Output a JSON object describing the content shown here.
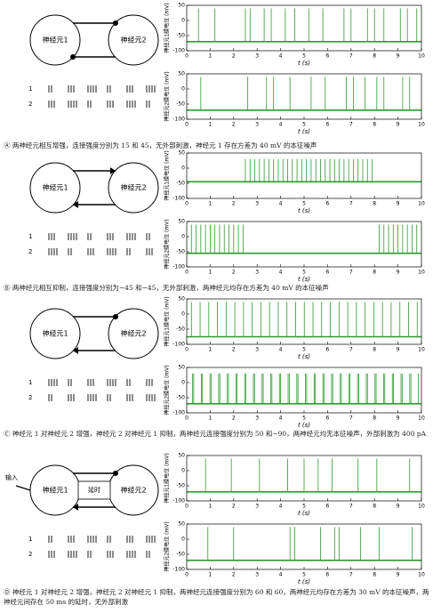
{
  "panels": [
    {
      "node1": "神经元1",
      "node2": "神经元2",
      "row1": "1",
      "row2": "2",
      "caption": "Ⓐ 两神经元相互增强，连接强度分别为 15 和 45，无外部刺激，神经元 1 存在方差为 40 mV 的本征噪声"
    },
    {
      "node1": "神经元1",
      "node2": "神经元2",
      "row1": "1",
      "row2": "2",
      "caption": "Ⓑ 两神经元相互抑制，连接强度分别为−45 和−45，无外部刺激，两神经元均存在方差为 40 mV 的本征噪声"
    },
    {
      "node1": "神经元1",
      "node2": "神经元2",
      "row1": "1",
      "row2": "2",
      "caption": "Ⓒ 神经元 1 对神经元 2 增强，神经元 2 对神经元 1 抑制，两神经元连接强度分别为 50 和−90，两神经元均无本征噪声，外部刺激为 400 pA"
    },
    {
      "node1": "神经元1",
      "node2": "神经元2",
      "row1": "1",
      "row2": "2",
      "input": "输入",
      "delay": "延时",
      "caption": "Ⓓ 神经元 1 对神经元 2 增强，神经元 2 对神经元 1 抑制，两神经元连接强度分别为 60 和 60，两神经元均存在方差为 30 mV 的本征噪声，两神经元间存在 50 ms 的延时，无外部刺激"
    }
  ],
  "chart_data": [
    {
      "type": "spikes",
      "ylabel": "神经元1膜电位 (mV)",
      "xlabel": "t (s)",
      "color": "#2e9a2e",
      "xlim": [
        0,
        10
      ],
      "ylim": [
        -100,
        50
      ],
      "xticks": [
        0,
        1,
        2,
        3,
        4,
        5,
        6,
        7,
        8,
        9,
        10
      ],
      "yticks": [
        -100,
        -50,
        0,
        50
      ],
      "baseline": -70,
      "peak": 40,
      "spike_times": [
        0.5,
        1.2,
        2.5,
        2.7,
        3.3,
        3.6,
        4.2,
        4.6,
        5.2,
        5.8,
        6.7,
        7.0,
        7.7,
        8.0,
        8.4,
        9.1,
        9.4,
        9.8
      ]
    },
    {
      "type": "spikes",
      "ylabel": "神经元2膜电位 (mV)",
      "xlabel": "t (s)",
      "color": "#2e9a2e",
      "xlim": [
        0,
        10
      ],
      "ylim": [
        -100,
        50
      ],
      "xticks": [
        0,
        1,
        2,
        3,
        4,
        5,
        6,
        7,
        8,
        9,
        10
      ],
      "yticks": [
        -100,
        -50,
        0,
        50
      ],
      "baseline": -70,
      "peak": 40,
      "spike_times": [
        0.6,
        2.6,
        3.4,
        3.7,
        4.4,
        5.3,
        5.9,
        6.8,
        7.1,
        7.6,
        8.1,
        8.4,
        9.2,
        9.5
      ]
    },
    {
      "type": "spikes",
      "ylabel": "神经元1膜电位 (mV)",
      "xlabel": "t (s)",
      "color": "#2e9a2e",
      "xlim": [
        0,
        10
      ],
      "ylim": [
        -100,
        50
      ],
      "xticks": [
        0,
        1,
        2,
        3,
        4,
        5,
        6,
        7,
        8,
        9,
        10
      ],
      "yticks": [
        -100,
        -50,
        0,
        50
      ],
      "baseline": -45,
      "peak": 30,
      "spike_times": [
        2.5,
        2.7,
        2.9,
        3.1,
        3.3,
        3.5,
        3.7,
        3.9,
        4.1,
        4.3,
        4.5,
        4.7,
        4.9,
        5.1,
        5.3,
        5.5,
        5.7,
        5.9,
        6.1,
        6.3,
        6.5,
        6.7,
        6.9,
        7.1,
        7.3,
        7.5,
        7.7,
        7.9
      ]
    },
    {
      "type": "spikes",
      "ylabel": "神经元2膜电位 (mV)",
      "xlabel": "t (s)",
      "color": "#2e9a2e",
      "xlim": [
        0,
        10
      ],
      "ylim": [
        -100,
        50
      ],
      "xticks": [
        0,
        1,
        2,
        3,
        4,
        5,
        6,
        7,
        8,
        9,
        10
      ],
      "yticks": [
        -100,
        -50,
        0,
        50
      ],
      "baseline": -55,
      "peak": 40,
      "spike_times": [
        0.2,
        0.4,
        0.6,
        0.8,
        1.0,
        1.2,
        1.4,
        1.6,
        1.8,
        2.0,
        2.2,
        2.4,
        8.2,
        8.4,
        8.6,
        8.8,
        9.0,
        9.2,
        9.4,
        9.6,
        9.8
      ]
    },
    {
      "type": "spikes",
      "ylabel": "神经元1膜电位 (mV)",
      "xlabel": "t (s)",
      "color": "#2e9a2e",
      "xlim": [
        0,
        10
      ],
      "ylim": [
        -100,
        50
      ],
      "xticks": [
        0,
        1,
        2,
        3,
        4,
        5,
        6,
        7,
        8,
        9,
        10
      ],
      "yticks": [
        -100,
        -50,
        0,
        50
      ],
      "baseline": -75,
      "peak": 40,
      "spike_times": [
        0.2,
        0.57,
        0.94,
        1.31,
        1.68,
        2.05,
        2.42,
        2.79,
        3.16,
        3.53,
        3.9,
        4.27,
        4.64,
        5.01,
        5.38,
        5.75,
        6.12,
        6.49,
        6.86,
        7.23,
        7.6,
        7.97,
        8.34,
        8.71,
        9.08,
        9.45,
        9.82
      ]
    },
    {
      "type": "spikes",
      "ylabel": "神经元2膜电位 (mV)",
      "xlabel": "t (s)",
      "color": "#2e9a2e",
      "xlim": [
        0,
        10
      ],
      "ylim": [
        -100,
        50
      ],
      "xticks": [
        0,
        1,
        2,
        3,
        4,
        5,
        6,
        7,
        8,
        9,
        10
      ],
      "yticks": [
        -100,
        -50,
        0,
        50
      ],
      "baseline": -70,
      "peak": 30,
      "spike_times": [
        0.25,
        0.3,
        0.62,
        0.67,
        0.99,
        1.04,
        1.36,
        1.41,
        1.73,
        1.78,
        2.1,
        2.15,
        2.47,
        2.52,
        2.84,
        2.89,
        3.21,
        3.26,
        3.58,
        3.63,
        3.95,
        4.0,
        4.32,
        4.37,
        4.69,
        4.74,
        5.06,
        5.11,
        5.43,
        5.48,
        5.8,
        5.85,
        6.17,
        6.22,
        6.54,
        6.59,
        6.91,
        6.96,
        7.28,
        7.33,
        7.65,
        7.7,
        8.02,
        8.07,
        8.39,
        8.44,
        8.76,
        8.81,
        9.13,
        9.18,
        9.5,
        9.55,
        9.87
      ]
    },
    {
      "type": "spikes",
      "ylabel": "神经元1膜电位 (mV)",
      "xlabel": "t (s)",
      "color": "#2e9a2e",
      "xlim": [
        0,
        10
      ],
      "ylim": [
        -100,
        50
      ],
      "xticks": [
        0,
        1,
        2,
        3,
        4,
        5,
        6,
        7,
        8,
        9,
        10
      ],
      "yticks": [
        -100,
        -50,
        0,
        50
      ],
      "baseline": -70,
      "peak": 40,
      "spike_times": [
        0.8,
        1.9,
        3.1,
        4.3,
        5.0,
        5.6,
        6.2,
        7.3,
        8.1,
        9.5
      ]
    },
    {
      "type": "spikes",
      "ylabel": "神经元2膜电位 (mV)",
      "xlabel": "t (s)",
      "color": "#2e9a2e",
      "xlim": [
        0,
        10
      ],
      "ylim": [
        -100,
        50
      ],
      "xticks": [
        0,
        1,
        2,
        3,
        4,
        5,
        6,
        7,
        8,
        9,
        10
      ],
      "yticks": [
        -100,
        -50,
        0,
        50
      ],
      "baseline": -70,
      "peak": 40,
      "spike_times": [
        0.9,
        2.0,
        4.4,
        4.6,
        5.7,
        6.3,
        6.5,
        7.4,
        8.2,
        9.6
      ]
    }
  ]
}
